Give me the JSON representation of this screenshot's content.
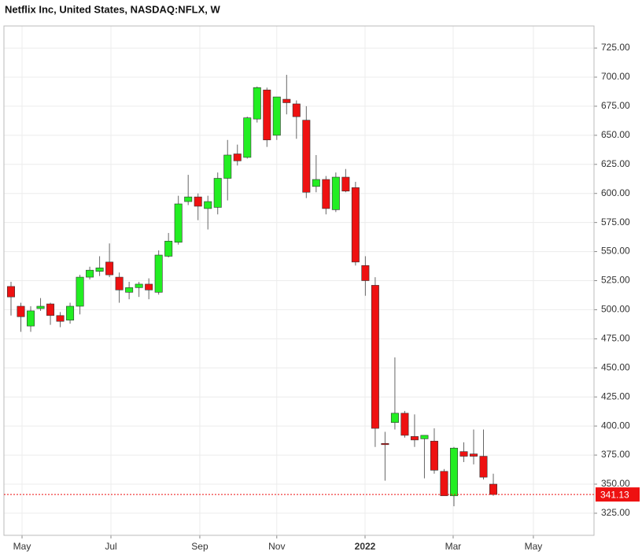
{
  "chart_data": {
    "type": "candlestick",
    "title": "Netflix Inc, United States, NASDAQ:NFLX, W",
    "x": [
      0,
      1,
      2,
      3,
      4,
      5,
      6,
      7,
      8,
      9,
      10,
      11,
      12,
      13,
      14,
      15,
      16,
      17,
      18,
      19,
      20,
      21,
      22,
      23,
      24,
      25,
      26,
      27,
      28,
      29,
      30,
      31,
      32,
      33,
      34,
      35,
      36,
      37,
      38,
      39,
      40,
      41,
      42,
      43,
      44,
      45,
      46,
      47,
      48,
      49
    ],
    "open": [
      520,
      503,
      486,
      501,
      505,
      495,
      491,
      503,
      528,
      533,
      541,
      528,
      515,
      519,
      522,
      515,
      546,
      558,
      593,
      597,
      587,
      588,
      613,
      634,
      631,
      664,
      689,
      650,
      681,
      677,
      663,
      606,
      612,
      586,
      614,
      605,
      538,
      521,
      385,
      403,
      411,
      391,
      389,
      387,
      361,
      340,
      378,
      376,
      374,
      350
    ],
    "high": [
      524,
      506,
      503,
      510,
      506,
      498,
      506,
      530,
      537,
      546,
      557,
      532,
      524,
      524,
      527,
      551,
      566,
      598,
      616,
      600,
      598,
      618,
      646,
      642,
      666,
      692,
      691,
      683,
      702,
      680,
      675,
      633,
      615,
      618,
      621,
      610,
      546,
      528,
      395,
      459,
      413,
      410,
      392,
      398,
      363,
      382,
      386,
      397,
      397,
      359
    ],
    "low": [
      495,
      481,
      481,
      499,
      487,
      485,
      488,
      496,
      526,
      529,
      528,
      506,
      509,
      511,
      509,
      513,
      545,
      556,
      590,
      577,
      569,
      582,
      594,
      624,
      630,
      661,
      640,
      646,
      668,
      647,
      596,
      601,
      582,
      584,
      601,
      538,
      512,
      382,
      353,
      397,
      390,
      382,
      355,
      359,
      340,
      331,
      369,
      367,
      354,
      340
    ],
    "close": [
      511,
      494,
      499,
      503,
      495,
      490,
      503,
      528,
      534,
      536,
      530,
      517,
      519,
      522,
      517,
      547,
      559,
      591,
      597,
      589,
      593,
      613,
      633,
      628,
      665,
      691,
      646,
      683,
      678,
      666,
      601,
      612,
      587,
      614,
      602,
      541,
      525,
      398,
      384,
      411,
      392,
      388,
      392,
      362,
      340,
      381,
      374,
      374,
      356,
      341.13
    ],
    "up_color": "#22ee22",
    "down_color": "#ee1111",
    "xlim": [
      -0.72,
      59.23
    ],
    "ylim": [
      306,
      744
    ],
    "xticks": [
      {
        "value": 1.12,
        "label": "May"
      },
      {
        "value": 10.15,
        "label": "Jul"
      },
      {
        "value": 19.18,
        "label": "Sep"
      },
      {
        "value": 27.0,
        "label": "Nov"
      },
      {
        "value": 35.97,
        "label": "2022"
      },
      {
        "value": 44.92,
        "label": "Mar"
      },
      {
        "value": 53.07,
        "label": "May"
      }
    ],
    "yticks": [
      {
        "value": 325,
        "label": "325.00"
      },
      {
        "value": 350,
        "label": "350.00"
      },
      {
        "value": 375,
        "label": "375.00"
      },
      {
        "value": 400,
        "label": "400.00"
      },
      {
        "value": 425,
        "label": "425.00"
      },
      {
        "value": 450,
        "label": "450.00"
      },
      {
        "value": 475,
        "label": "475.00"
      },
      {
        "value": 500,
        "label": "500.00"
      },
      {
        "value": 525,
        "label": "525.00"
      },
      {
        "value": 550,
        "label": "550.00"
      },
      {
        "value": 575,
        "label": "575.00"
      },
      {
        "value": 600,
        "label": "600.00"
      },
      {
        "value": 625,
        "label": "625.00"
      },
      {
        "value": 650,
        "label": "650.00"
      },
      {
        "value": 675,
        "label": "675.00"
      },
      {
        "value": 700,
        "label": "700.00"
      },
      {
        "value": 725,
        "label": "725.00"
      }
    ],
    "grid": true,
    "last_price": 341.13,
    "last_price_color": "#ee1111"
  }
}
